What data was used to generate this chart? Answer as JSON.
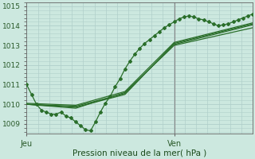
{
  "background_color": "#cce8df",
  "grid_color": "#b0cfca",
  "line_color": "#2a6e2a",
  "xlabel": "Pression niveau de la mer( hPa )",
  "ylim": [
    1008.5,
    1015.2
  ],
  "xlim": [
    0,
    46
  ],
  "ylabel_ticks": [
    1009,
    1010,
    1011,
    1012,
    1013,
    1014,
    1015
  ],
  "jeu_x": 0,
  "ven_x": 30,
  "series": [
    {
      "x": [
        0,
        1,
        2,
        3,
        4,
        5,
        6,
        7,
        8,
        9,
        10,
        11,
        12,
        13,
        14,
        15,
        16,
        17,
        18,
        19,
        20,
        21,
        22,
        23,
        24,
        25,
        26,
        27,
        28,
        29,
        30,
        31,
        32,
        33,
        34,
        35,
        36,
        37,
        38,
        39,
        40,
        41,
        42,
        43,
        44,
        45,
        46
      ],
      "y": [
        1011.0,
        1010.5,
        1010.0,
        1009.7,
        1009.6,
        1009.5,
        1009.5,
        1009.6,
        1009.4,
        1009.3,
        1009.1,
        1008.9,
        1008.7,
        1008.65,
        1009.1,
        1009.6,
        1010.05,
        1010.4,
        1010.9,
        1011.3,
        1011.8,
        1012.2,
        1012.55,
        1012.85,
        1013.1,
        1013.3,
        1013.5,
        1013.7,
        1013.9,
        1014.05,
        1014.2,
        1014.35,
        1014.45,
        1014.5,
        1014.45,
        1014.35,
        1014.3,
        1014.2,
        1014.1,
        1014.0,
        1014.05,
        1014.1,
        1014.2,
        1014.3,
        1014.4,
        1014.5,
        1014.6
      ],
      "marker": true
    },
    {
      "x": [
        0,
        10,
        20,
        30,
        46
      ],
      "y": [
        1010.0,
        1009.8,
        1010.6,
        1013.0,
        1013.9
      ],
      "marker": false
    },
    {
      "x": [
        0,
        10,
        20,
        30,
        46
      ],
      "y": [
        1010.0,
        1009.85,
        1010.5,
        1013.1,
        1014.1
      ],
      "marker": false
    },
    {
      "x": [
        0,
        10,
        20,
        30,
        46
      ],
      "y": [
        1010.0,
        1009.9,
        1010.55,
        1013.05,
        1014.05
      ],
      "marker": false
    },
    {
      "x": [
        0,
        10,
        20,
        30,
        46
      ],
      "y": [
        1010.05,
        1009.95,
        1010.65,
        1013.15,
        1014.15
      ],
      "marker": false
    }
  ],
  "minor_grid_x_count": 10,
  "vline_color": "#888888"
}
